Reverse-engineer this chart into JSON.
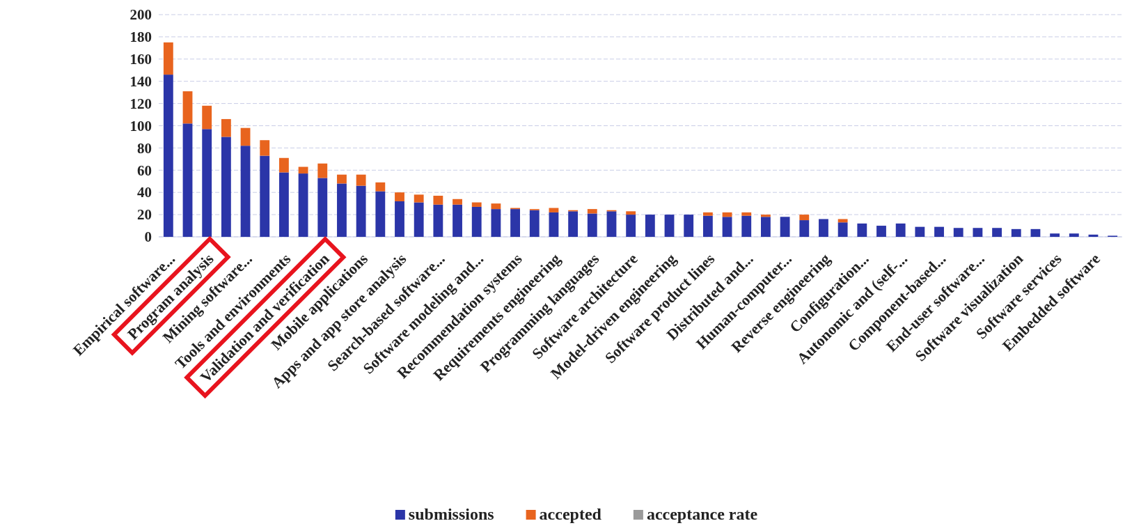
{
  "chart_data": {
    "type": "bar",
    "stacked": true,
    "categories": [
      "Empirical software...",
      null,
      "Program analysis",
      null,
      "Mining software...",
      null,
      "Tools and environments",
      null,
      "Validation and verification",
      null,
      "Mobile applications",
      null,
      "Apps and app store analysis",
      null,
      "Search-based software...",
      null,
      "Software modeling and...",
      null,
      "Recommendation systems",
      null,
      "Requirements engineering",
      null,
      "Programming languages",
      null,
      "Software architecture",
      null,
      "Model-driven engineering",
      null,
      "Software product lines",
      null,
      "Distributed and...",
      null,
      "Human-computer...",
      null,
      "Reverse engineering",
      null,
      "Configuration...",
      null,
      "Autonomic and (self-...",
      null,
      "Component-based...",
      null,
      "End-user software...",
      null,
      "Software visualization",
      null,
      "Software services",
      null,
      "Embedded software",
      null
    ],
    "series": [
      {
        "name": "submissions",
        "color": "#2b35a8",
        "values": [
          146,
          102,
          97,
          90,
          82,
          73,
          58,
          57,
          53,
          48,
          46,
          41,
          32,
          31,
          29,
          29,
          27,
          25,
          25,
          24,
          22,
          23,
          21,
          23,
          20,
          20,
          20,
          20,
          19,
          18,
          19,
          18,
          18,
          15,
          16,
          13,
          12,
          10,
          12,
          9,
          9,
          8,
          8,
          8,
          7,
          7,
          3,
          3,
          2,
          1
        ]
      },
      {
        "name": "accepted",
        "color": "#e8641e",
        "values": [
          29,
          29,
          21,
          16,
          16,
          14,
          13,
          6,
          13,
          8,
          10,
          8,
          8,
          7,
          8,
          5,
          4,
          5,
          1,
          1,
          4,
          1,
          4,
          1,
          3,
          0,
          0,
          0,
          3,
          4,
          3,
          2,
          0,
          5,
          0,
          3,
          0,
          0,
          0,
          0,
          0,
          0,
          0,
          0,
          0,
          0,
          0,
          0,
          0,
          0
        ]
      },
      {
        "name": "acceptance rate",
        "color": "#9a9a9a",
        "values": [
          null,
          null,
          null,
          null,
          null,
          null,
          null,
          null,
          null,
          null,
          null,
          null,
          null,
          null,
          null,
          null,
          null,
          null,
          null,
          null,
          null,
          null,
          null,
          null,
          null,
          null,
          null,
          null,
          null,
          null,
          null,
          null,
          null,
          null,
          null,
          null,
          null,
          null,
          null,
          null,
          null,
          null,
          null,
          null,
          null,
          null,
          null,
          null,
          null,
          null
        ]
      }
    ],
    "ylim": [
      0,
      200
    ],
    "yticks": [
      0,
      20,
      40,
      60,
      80,
      100,
      120,
      140,
      160,
      180,
      200
    ],
    "grid": "y",
    "legend": "bottom"
  }
}
